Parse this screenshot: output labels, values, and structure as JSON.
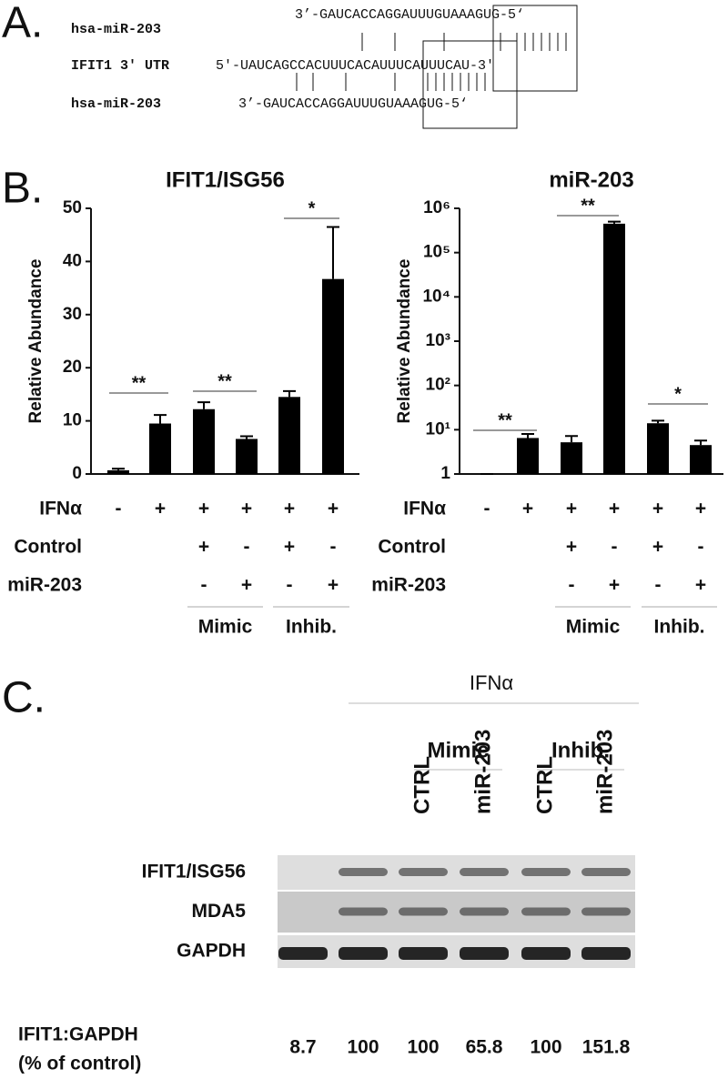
{
  "panel_a": {
    "letter": "A.",
    "rows": [
      {
        "label": "hsa-miR-203",
        "sequence": "3’-GAUCACCAGGAUUUGUAAAGUG-5‘"
      },
      {
        "label": "IFIT1 3' UTR",
        "sequence": "5'-UAUCAGCCACUUUCACAUUUCAUUUCAU-3'"
      },
      {
        "label": "hsa-miR-203",
        "sequence": "3’-GAUCACCAGGAUUUGUAAAGUG-5‘"
      }
    ]
  },
  "panel_b": {
    "letter": "B.",
    "conditions": [
      {
        "label": "IFNα",
        "marks": [
          "-",
          "+",
          "+",
          "+",
          "+",
          "+"
        ]
      },
      {
        "label": "Control",
        "marks": [
          null,
          null,
          "+",
          "-",
          "+",
          "-"
        ]
      },
      {
        "label": "miR-203",
        "marks": [
          null,
          null,
          "-",
          "+",
          "-",
          "+"
        ]
      }
    ],
    "groups": [
      "Mimic",
      "Inhib."
    ]
  },
  "chart_data": [
    {
      "type": "bar",
      "title": "IFIT1/ISG56",
      "y_label": "Relative Abundance",
      "categories": [
        null,
        null,
        null,
        null,
        null,
        null
      ],
      "series": [
        {
          "color": "#000000",
          "values": [
            0.7,
            9.5,
            12.2,
            6.6,
            14.5,
            36.7
          ],
          "errors": [
            0.3,
            1.6,
            1.3,
            0.5,
            1.1,
            9.8
          ]
        }
      ],
      "ylim": [
        0,
        50
      ],
      "yticks": [
        0,
        10,
        20,
        30,
        40,
        50
      ],
      "log_scale": false,
      "annotations": [
        "**",
        "**",
        "*"
      ]
    },
    {
      "type": "bar",
      "title": "miR-203",
      "y_label": "Relative Abundance",
      "categories": [
        null,
        null,
        null,
        null,
        null,
        null
      ],
      "series": [
        {
          "color": "#000000",
          "values": [
            1,
            6.5,
            5.2,
            450000,
            14,
            4.5
          ],
          "errors": [
            0,
            1.5,
            2,
            50000,
            2,
            1.2
          ]
        }
      ],
      "ylim": [
        1,
        1000000
      ],
      "yticks": [
        1,
        {
          "value": 10,
          "label": "10¹"
        },
        {
          "value": 100,
          "label": "10²"
        },
        {
          "value": 1000,
          "label": "10³"
        },
        {
          "value": 10000,
          "label": "10⁴"
        },
        {
          "value": 100000,
          "label": "10⁵"
        },
        {
          "value": 1000000,
          "label": "10⁶"
        }
      ],
      "log_scale": true,
      "annotations": [
        "**",
        "**",
        "*"
      ]
    }
  ],
  "panel_c": {
    "letter": "C.",
    "treatment": "IFNα",
    "groups": [
      "Mimic",
      "Inhib."
    ],
    "lanes": [
      "CTRL",
      "miR-203",
      "CTRL",
      "miR-203"
    ],
    "blots": [
      "IFIT1/ISG56",
      "MDA5",
      "GAPDH"
    ],
    "quant_label": [
      "IFIT1:GAPDH",
      "(% of control)"
    ],
    "quant_values": [
      8.7,
      100,
      100,
      65.8,
      100,
      151.8
    ]
  }
}
